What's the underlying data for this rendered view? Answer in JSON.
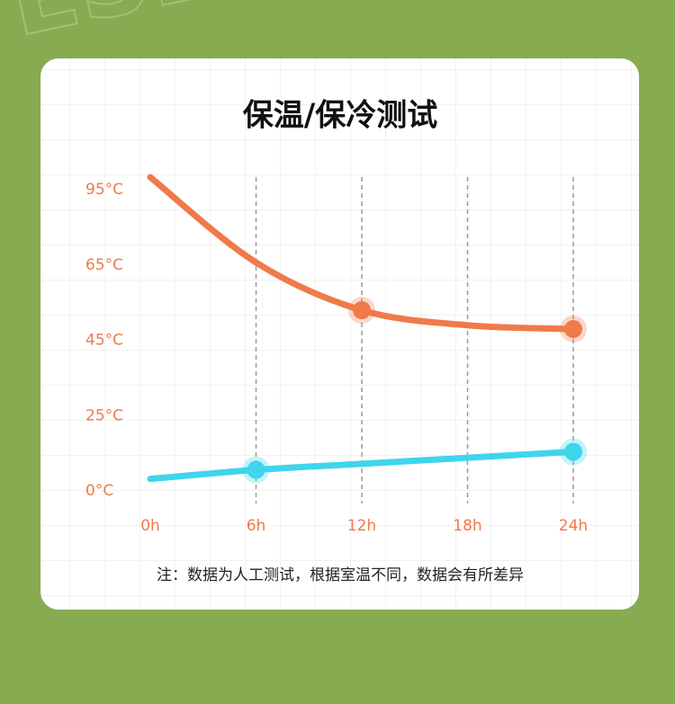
{
  "watermark": "ESERV",
  "chart_data": {
    "type": "line",
    "title": "保温/保冷测试",
    "note": "注：数据为人工测试，根据室温不同，数据会有所差异",
    "x": [
      0,
      6,
      12,
      18,
      24
    ],
    "xlim": [
      0,
      24
    ],
    "xticks": [
      {
        "value": 0,
        "label": "0h"
      },
      {
        "value": 6,
        "label": "6h"
      },
      {
        "value": 12,
        "label": "12h"
      },
      {
        "value": 18,
        "label": "18h"
      },
      {
        "value": 24,
        "label": "24h"
      }
    ],
    "ylim": [
      0,
      100
    ],
    "yticks": [
      {
        "value": 0,
        "label": "0°C"
      },
      {
        "value": 25,
        "label": "25°C"
      },
      {
        "value": 45,
        "label": "45°C"
      },
      {
        "value": 65,
        "label": "65°C"
      },
      {
        "value": 95,
        "label": "95°C"
      }
    ],
    "series": [
      {
        "color": "#f07a4a",
        "values": [
          100,
          66,
          53,
          49,
          48
        ],
        "highlight": [
          2,
          4
        ]
      },
      {
        "color": "#3fd5ec",
        "values": [
          4,
          7,
          9,
          11,
          13
        ],
        "highlight": [
          1,
          4
        ]
      }
    ]
  }
}
